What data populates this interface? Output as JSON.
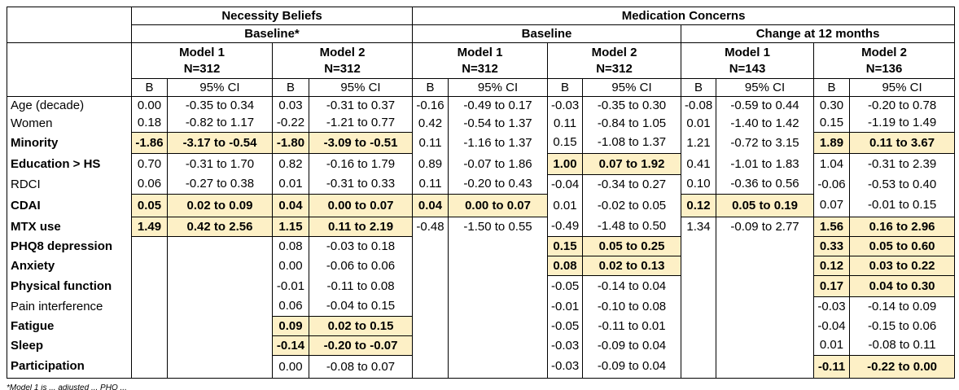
{
  "header": {
    "group1": "Necessity Beliefs",
    "group2": "Medication Concerns",
    "sub_baseline_star": "Baseline*",
    "sub_baseline": "Baseline",
    "sub_change": "Change at 12 months",
    "model1": "Model 1",
    "model2": "Model 2",
    "n312": "N=312",
    "n143": "N=143",
    "n136": "N=136",
    "b": "B",
    "ci": "95% CI"
  },
  "footnote": "*Model 1 is ... adjusted ... PHQ ... ",
  "colors": {
    "highlight": "#fdf0c6"
  },
  "rows": [
    {
      "label": "Age (decade)",
      "bold": false,
      "cells": [
        [
          "0.00",
          "-0.35 to 0.34",
          false
        ],
        [
          "0.03",
          "-0.31 to 0.37",
          false
        ],
        [
          "-0.16",
          "-0.49 to 0.17",
          false
        ],
        [
          "-0.03",
          "-0.35 to 0.30",
          false
        ],
        [
          "-0.08",
          "-0.59 to 0.44",
          false
        ],
        [
          "0.30",
          "-0.20 to 0.78",
          false
        ]
      ]
    },
    {
      "label": "Women",
      "bold": false,
      "cells": [
        [
          "0.18",
          "-0.82 to 1.17",
          false
        ],
        [
          "-0.22",
          "-1.21 to 0.77",
          false
        ],
        [
          "0.42",
          "-0.54 to 1.37",
          false
        ],
        [
          "0.11",
          "-0.84 to 1.05",
          false
        ],
        [
          "0.01",
          "-1.40 to 1.42",
          false
        ],
        [
          "0.15",
          "-1.19 to 1.49",
          false
        ]
      ]
    },
    {
      "label": "Minority",
      "bold": true,
      "cells": [
        [
          "-1.86",
          "-3.17 to -0.54",
          true
        ],
        [
          "-1.80",
          "-3.09 to -0.51",
          true
        ],
        [
          "0.11",
          "-1.16 to 1.37",
          false
        ],
        [
          "0.15",
          "-1.08 to 1.37",
          false
        ],
        [
          "1.21",
          "-0.72 to 3.15",
          false
        ],
        [
          "1.89",
          "0.11 to 3.67",
          true
        ]
      ]
    },
    {
      "label": "Education > HS",
      "bold": true,
      "cells": [
        [
          "0.70",
          "-0.31 to 1.70",
          false
        ],
        [
          "0.82",
          "-0.16 to 1.79",
          false
        ],
        [
          "0.89",
          "-0.07 to 1.86",
          false
        ],
        [
          "1.00",
          "0.07 to 1.92",
          true
        ],
        [
          "0.41",
          "-1.01 to 1.83",
          false
        ],
        [
          "1.04",
          "-0.31 to 2.39",
          false
        ]
      ]
    },
    {
      "label": "RDCI",
      "bold": false,
      "cells": [
        [
          "0.06",
          "-0.27 to 0.38",
          false
        ],
        [
          "0.01",
          "-0.31 to 0.33",
          false
        ],
        [
          "0.11",
          "-0.20 to 0.43",
          false
        ],
        [
          "-0.04",
          "-0.34 to 0.27",
          false
        ],
        [
          "0.10",
          "-0.36 to 0.56",
          false
        ],
        [
          "-0.06",
          "-0.53 to 0.40",
          false
        ]
      ]
    },
    {
      "label": "CDAI",
      "bold": true,
      "cells": [
        [
          "0.05",
          "0.02 to 0.09",
          true
        ],
        [
          "0.04",
          "0.00 to 0.07",
          true
        ],
        [
          "0.04",
          "0.00 to 0.07",
          true
        ],
        [
          "0.01",
          "-0.02 to 0.05",
          false
        ],
        [
          "0.12",
          "0.05 to 0.19",
          true
        ],
        [
          "0.07",
          "-0.01 to 0.15",
          false
        ]
      ]
    },
    {
      "label": "MTX use",
      "bold": true,
      "cells": [
        [
          "1.49",
          "0.42 to 2.56",
          true
        ],
        [
          "1.15",
          "0.11 to 2.19",
          true
        ],
        [
          "-0.48",
          "-1.50 to 0.55",
          false
        ],
        [
          "-0.49",
          "-1.48 to 0.50",
          false
        ],
        [
          "1.34",
          "-0.09 to 2.77",
          false
        ],
        [
          "1.56",
          "0.16 to 2.96",
          true
        ]
      ]
    },
    {
      "label": "PHQ8 depression",
      "bold": true,
      "cells": [
        [
          "",
          "",
          false
        ],
        [
          "0.08",
          "-0.03 to 0.18",
          false
        ],
        [
          "",
          "",
          false
        ],
        [
          "0.15",
          "0.05 to 0.25",
          true
        ],
        [
          "",
          "",
          false
        ],
        [
          "0.33",
          "0.05 to 0.60",
          true
        ]
      ]
    },
    {
      "label": "Anxiety",
      "bold": true,
      "cells": [
        [
          "",
          "",
          false
        ],
        [
          "0.00",
          "-0.06 to 0.06",
          false
        ],
        [
          "",
          "",
          false
        ],
        [
          "0.08",
          "0.02 to 0.13",
          true
        ],
        [
          "",
          "",
          false
        ],
        [
          "0.12",
          "0.03 to 0.22",
          true
        ]
      ]
    },
    {
      "label": "Physical function",
      "bold": true,
      "cells": [
        [
          "",
          "",
          false
        ],
        [
          "-0.01",
          "-0.11 to 0.08",
          false
        ],
        [
          "",
          "",
          false
        ],
        [
          "-0.05",
          "-0.14 to 0.04",
          false
        ],
        [
          "",
          "",
          false
        ],
        [
          "0.17",
          "0.04 to 0.30",
          true
        ]
      ]
    },
    {
      "label": "Pain interference",
      "bold": false,
      "cells": [
        [
          "",
          "",
          false
        ],
        [
          "0.06",
          "-0.04 to 0.15",
          false
        ],
        [
          "",
          "",
          false
        ],
        [
          "-0.01",
          "-0.10 to 0.08",
          false
        ],
        [
          "",
          "",
          false
        ],
        [
          "-0.03",
          "-0.14 to 0.09",
          false
        ]
      ]
    },
    {
      "label": "Fatigue",
      "bold": true,
      "cells": [
        [
          "",
          "",
          false
        ],
        [
          "0.09",
          "0.02 to 0.15",
          true
        ],
        [
          "",
          "",
          false
        ],
        [
          "-0.05",
          "-0.11 to 0.01",
          false
        ],
        [
          "",
          "",
          false
        ],
        [
          "-0.04",
          "-0.15 to 0.06",
          false
        ]
      ]
    },
    {
      "label": "Sleep",
      "bold": true,
      "cells": [
        [
          "",
          "",
          false
        ],
        [
          "-0.14",
          "-0.20 to -0.07",
          true
        ],
        [
          "",
          "",
          false
        ],
        [
          "-0.03",
          "-0.09 to 0.04",
          false
        ],
        [
          "",
          "",
          false
        ],
        [
          "0.01",
          "-0.08 to 0.11",
          false
        ]
      ]
    },
    {
      "label": "Participation",
      "bold": true,
      "cells": [
        [
          "",
          "",
          false
        ],
        [
          "0.00",
          "-0.08 to 0.07",
          false
        ],
        [
          "",
          "",
          false
        ],
        [
          "-0.03",
          "-0.09 to 0.04",
          false
        ],
        [
          "",
          "",
          false
        ],
        [
          "-0.11",
          "-0.22 to 0.00",
          true
        ]
      ]
    }
  ]
}
